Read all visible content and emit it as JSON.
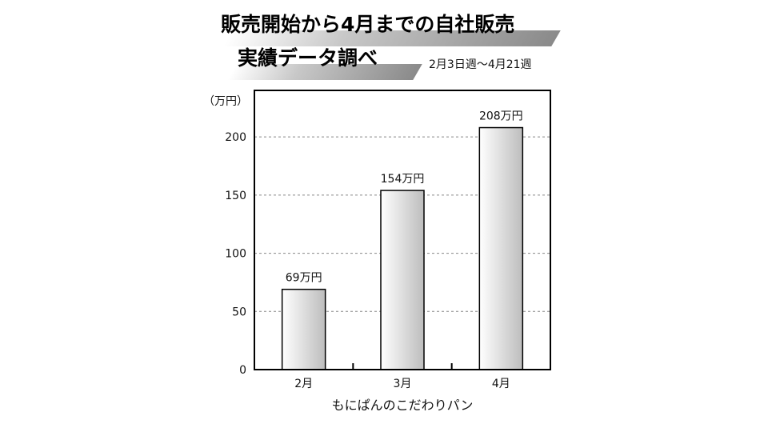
{
  "title": {
    "line1": "販売開始から4月までの自社販売",
    "line2": "実績データ調べ"
  },
  "period_note": "2月3日週～4月21週",
  "chart_data": {
    "type": "bar",
    "categories": [
      "2月",
      "3月",
      "4月"
    ],
    "values": [
      69,
      154,
      208
    ],
    "data_labels": [
      "69万円",
      "154万円",
      "208万円"
    ],
    "ylabel": "（万円）",
    "xlabel": "もにぱんのこだわりパン",
    "ylim": [
      0,
      240
    ],
    "yticks": [
      0,
      50,
      100,
      150,
      200
    ],
    "ytick_labels": [
      "0",
      "50",
      "100",
      "150",
      "200"
    ],
    "grid": true,
    "grid_style": "dashed",
    "bar_fill": "gradient gray"
  },
  "colors": {
    "bar_light": "#ffffff",
    "bar_dark": "#bdbdbd",
    "grid": "#888888",
    "axis": "#000000"
  }
}
